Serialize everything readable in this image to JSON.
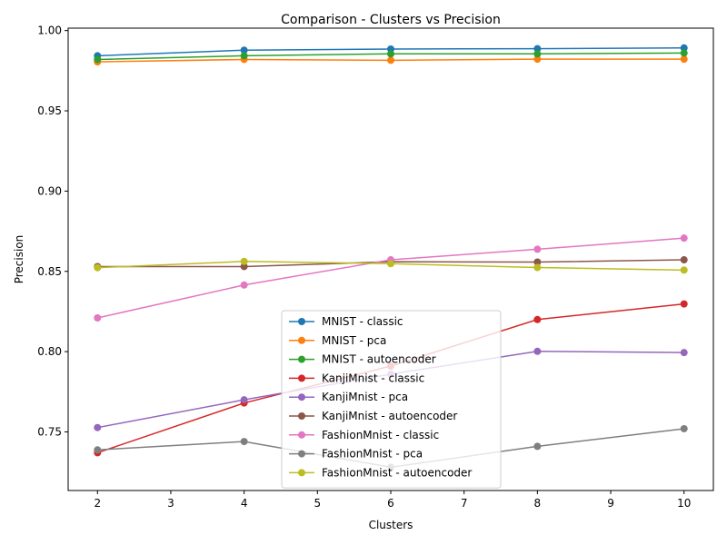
{
  "chart_data": {
    "type": "line",
    "title": "Comparison - Clusters vs Precision",
    "xlabel": "Clusters",
    "ylabel": "Precision",
    "xlim": [
      1.6,
      10.4
    ],
    "ylim": [
      0.7135,
      1.0015
    ],
    "xticks": [
      2,
      3,
      4,
      5,
      6,
      7,
      8,
      9,
      10
    ],
    "yticks": [
      0.75,
      0.8,
      0.85,
      0.9,
      0.95,
      1.0
    ],
    "ytick_labels": [
      "0.75",
      "0.80",
      "0.85",
      "0.90",
      "0.95",
      "1.00"
    ],
    "grid": false,
    "legend_position": "lower-center",
    "x": [
      2,
      4,
      6,
      8,
      10
    ],
    "series": [
      {
        "name": "MNIST - classic",
        "color": "#1f77b4",
        "values": [
          0.9843,
          0.9878,
          0.9885,
          0.9887,
          0.9892
        ]
      },
      {
        "name": "MNIST - pca",
        "color": "#ff7f0e",
        "values": [
          0.9805,
          0.982,
          0.9815,
          0.9822,
          0.9822
        ]
      },
      {
        "name": "MNIST - autoencoder",
        "color": "#2ca02c",
        "values": [
          0.982,
          0.9843,
          0.9855,
          0.9855,
          0.986
        ]
      },
      {
        "name": "KanjiMnist - classic",
        "color": "#d62728",
        "values": [
          0.737,
          0.768,
          0.791,
          0.82,
          0.8297
        ]
      },
      {
        "name": "KanjiMnist - pca",
        "color": "#9467bd",
        "values": [
          0.7527,
          0.77,
          0.786,
          0.8002,
          0.7994
        ]
      },
      {
        "name": "KanjiMnist - autoencoder",
        "color": "#8c564b",
        "values": [
          0.853,
          0.853,
          0.856,
          0.8558,
          0.8572
        ]
      },
      {
        "name": "FashionMnist - classic",
        "color": "#e377c2",
        "values": [
          0.821,
          0.8415,
          0.8572,
          0.8638,
          0.8707
        ]
      },
      {
        "name": "FashionMnist - pca",
        "color": "#7f7f7f",
        "values": [
          0.7388,
          0.744,
          0.728,
          0.741,
          0.752
        ]
      },
      {
        "name": "FashionMnist - autoencoder",
        "color": "#bcbd22",
        "values": [
          0.8523,
          0.8562,
          0.8548,
          0.8524,
          0.8508
        ]
      }
    ]
  }
}
